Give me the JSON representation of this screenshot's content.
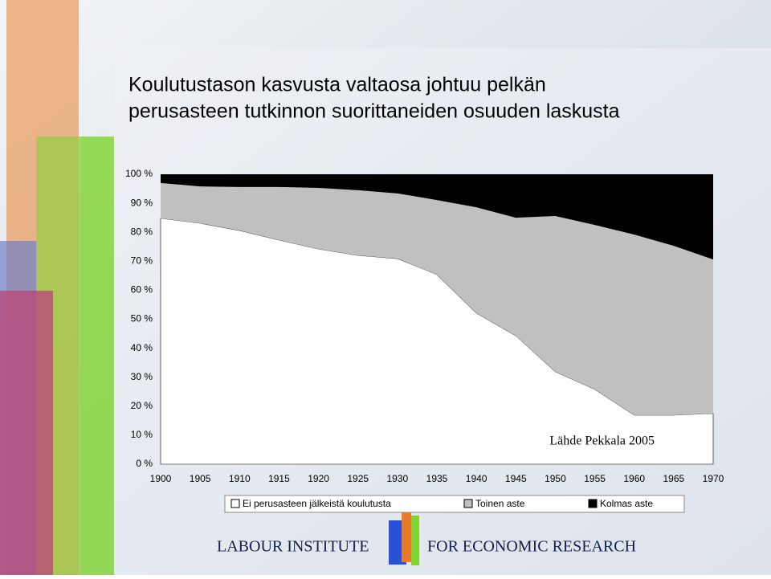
{
  "chart_data": {
    "type": "stacked-area",
    "title": [
      "Koulutustason kasvusta valtaosa johtuu pelkän",
      "perusasteen tutkinnon suorittaneiden osuuden laskusta"
    ],
    "annotation": "Lähde Pekkala 2005",
    "x": [
      1900,
      1905,
      1910,
      1915,
      1920,
      1925,
      1930,
      1935,
      1940,
      1945,
      1950,
      1955,
      1960,
      1965,
      1970
    ],
    "xlim": [
      1900,
      1970
    ],
    "xticks": [
      1900,
      1905,
      1910,
      1915,
      1920,
      1925,
      1930,
      1935,
      1940,
      1945,
      1950,
      1955,
      1960,
      1965,
      1970
    ],
    "ylim": [
      0,
      100
    ],
    "yticks": [
      {
        "value": 0,
        "label": "0 %"
      },
      {
        "value": 10,
        "label": "10 %"
      },
      {
        "value": 20,
        "label": "20 %"
      },
      {
        "value": 30,
        "label": "30 %"
      },
      {
        "value": 40,
        "label": "40 %"
      },
      {
        "value": 50,
        "label": "50 %"
      },
      {
        "value": 60,
        "label": "60 %"
      },
      {
        "value": 70,
        "label": "70 %"
      },
      {
        "value": 80,
        "label": "80 %"
      },
      {
        "value": 90,
        "label": "90 %"
      },
      {
        "value": 100,
        "label": "100 %"
      }
    ],
    "grid": false,
    "legend": "bottom",
    "series": [
      {
        "name": "Ei perusasteen jälkeistä koulutusta",
        "color": "#ffffff",
        "values": [
          84.8,
          83.1,
          80.6,
          77.3,
          74.2,
          72.0,
          70.9,
          65.4,
          52.1,
          44.3,
          31.9,
          25.8,
          16.9,
          16.9,
          17.5
        ]
      },
      {
        "name": "Toinen aste",
        "color": "#c0c0c0",
        "values": [
          12.2,
          12.7,
          15.0,
          18.3,
          21.1,
          22.5,
          22.5,
          25.7,
          36.5,
          40.7,
          53.7,
          56.7,
          62.3,
          58.4,
          53.1
        ]
      },
      {
        "name": "Kolmas aste",
        "color": "#000000",
        "values": [
          3.0,
          4.2,
          4.4,
          4.4,
          4.7,
          5.5,
          6.6,
          8.9,
          11.4,
          15.0,
          14.4,
          17.5,
          20.8,
          24.7,
          29.4
        ]
      }
    ]
  },
  "footer": {
    "left": "LABOUR INSTITUTE",
    "right": "FOR ECONOMIC RESEARCH"
  }
}
